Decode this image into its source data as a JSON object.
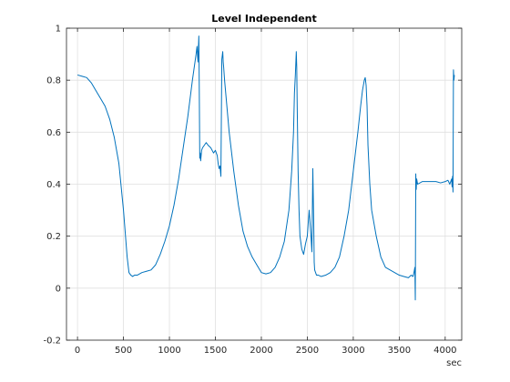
{
  "chart_data": {
    "type": "line",
    "title": "Level Independent",
    "xlabel": "sec",
    "ylabel": "",
    "xlim": [
      -120,
      4180
    ],
    "ylim": [
      -0.2,
      1
    ],
    "xticks": [
      0,
      500,
      1000,
      1500,
      2000,
      2500,
      3000,
      3500,
      4000
    ],
    "xtick_labels": [
      "0",
      "500",
      "1000",
      "1500",
      "2000",
      "2500",
      "3000",
      "3500",
      "4000"
    ],
    "yticks": [
      -0.2,
      0,
      0.2,
      0.4,
      0.6,
      0.8,
      1
    ],
    "ytick_labels": [
      "-0.2",
      "0",
      "0.2",
      "0.4",
      "0.6",
      "0.8",
      "1"
    ],
    "grid": true,
    "legend": false,
    "colors": {
      "series": "#0072BD",
      "grid": "#e0e0e0",
      "axis": "#262626"
    },
    "series": [
      {
        "x": [
          0,
          50,
          100,
          150,
          200,
          250,
          300,
          350,
          400,
          450,
          500,
          540,
          560,
          580,
          600,
          620,
          650,
          700,
          750,
          800,
          850,
          900,
          950,
          1000,
          1050,
          1100,
          1150,
          1200,
          1250,
          1290,
          1300,
          1310,
          1320,
          1325,
          1330,
          1335,
          1340,
          1350,
          1360,
          1380,
          1400,
          1420,
          1450,
          1480,
          1500,
          1520,
          1530,
          1540,
          1550,
          1560,
          1570,
          1580,
          1585,
          1590,
          1600,
          1620,
          1650,
          1700,
          1750,
          1800,
          1850,
          1900,
          1950,
          2000,
          2050,
          2100,
          2150,
          2200,
          2250,
          2300,
          2330,
          2350,
          2360,
          2370,
          2380,
          2385,
          2390,
          2400,
          2410,
          2420,
          2440,
          2460,
          2480,
          2500,
          2520,
          2540,
          2550,
          2560,
          2565,
          2570,
          2575,
          2580,
          2600,
          2620,
          2650,
          2700,
          2750,
          2800,
          2850,
          2900,
          2950,
          3000,
          3050,
          3080,
          3100,
          3120,
          3130,
          3140,
          3150,
          3160,
          3180,
          3200,
          3250,
          3300,
          3350,
          3400,
          3450,
          3500,
          3550,
          3600,
          3630,
          3650,
          3660,
          3670,
          3675,
          3680,
          3685,
          3690,
          3700,
          3750,
          3800,
          3850,
          3900,
          3950,
          4000,
          4030,
          4050,
          4060,
          4070,
          4075,
          4080,
          4085,
          4090,
          4095,
          4100
        ],
        "y": [
          0.82,
          0.815,
          0.81,
          0.79,
          0.76,
          0.73,
          0.7,
          0.65,
          0.58,
          0.48,
          0.3,
          0.12,
          0.06,
          0.05,
          0.045,
          0.05,
          0.05,
          0.06,
          0.065,
          0.07,
          0.09,
          0.13,
          0.18,
          0.24,
          0.32,
          0.42,
          0.54,
          0.66,
          0.8,
          0.9,
          0.93,
          0.87,
          0.97,
          0.75,
          0.5,
          0.52,
          0.49,
          0.53,
          0.54,
          0.55,
          0.56,
          0.55,
          0.54,
          0.52,
          0.53,
          0.51,
          0.48,
          0.46,
          0.47,
          0.43,
          0.88,
          0.91,
          0.87,
          0.85,
          0.8,
          0.72,
          0.6,
          0.45,
          0.32,
          0.22,
          0.16,
          0.12,
          0.09,
          0.06,
          0.055,
          0.06,
          0.08,
          0.12,
          0.18,
          0.3,
          0.45,
          0.6,
          0.75,
          0.82,
          0.91,
          0.85,
          0.7,
          0.45,
          0.3,
          0.2,
          0.15,
          0.13,
          0.17,
          0.2,
          0.3,
          0.2,
          0.14,
          0.46,
          0.35,
          0.25,
          0.1,
          0.07,
          0.05,
          0.05,
          0.045,
          0.05,
          0.06,
          0.08,
          0.12,
          0.2,
          0.3,
          0.45,
          0.6,
          0.7,
          0.76,
          0.8,
          0.81,
          0.78,
          0.7,
          0.55,
          0.4,
          0.3,
          0.2,
          0.12,
          0.08,
          0.07,
          0.06,
          0.05,
          0.045,
          0.04,
          0.05,
          0.045,
          0.06,
          0.08,
          -0.045,
          0.44,
          0.38,
          0.42,
          0.4,
          0.41,
          0.41,
          0.41,
          0.41,
          0.405,
          0.41,
          0.415,
          0.4,
          0.41,
          0.42,
          0.39,
          0.43,
          0.37,
          0.84,
          0.8,
          0.82
        ]
      }
    ]
  }
}
